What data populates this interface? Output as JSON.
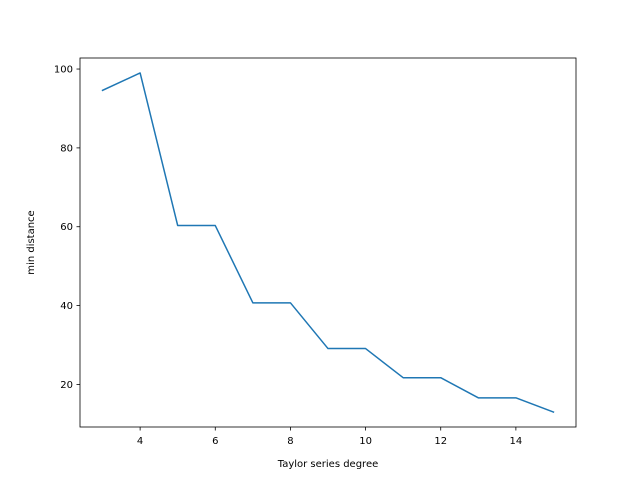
{
  "chart_data": {
    "type": "line",
    "title": "",
    "xlabel": "Taylor series degree",
    "ylabel": "min distance",
    "xlim": [
      2.4,
      15.6
    ],
    "ylim": [
      9.2,
      102.8
    ],
    "xticks": [
      4,
      6,
      8,
      10,
      12,
      14
    ],
    "yticks": [
      20,
      40,
      60,
      80,
      100
    ],
    "grid": false,
    "legend": "none",
    "series": [
      {
        "color": "#1f77b4",
        "x": [
          3,
          4,
          5,
          6,
          7,
          8,
          9,
          10,
          11,
          12,
          13,
          14,
          15
        ],
        "y": [
          94.6,
          99.0,
          60.3,
          60.3,
          40.7,
          40.7,
          29.1,
          29.1,
          21.7,
          21.7,
          16.6,
          16.6,
          13.0
        ]
      }
    ]
  }
}
